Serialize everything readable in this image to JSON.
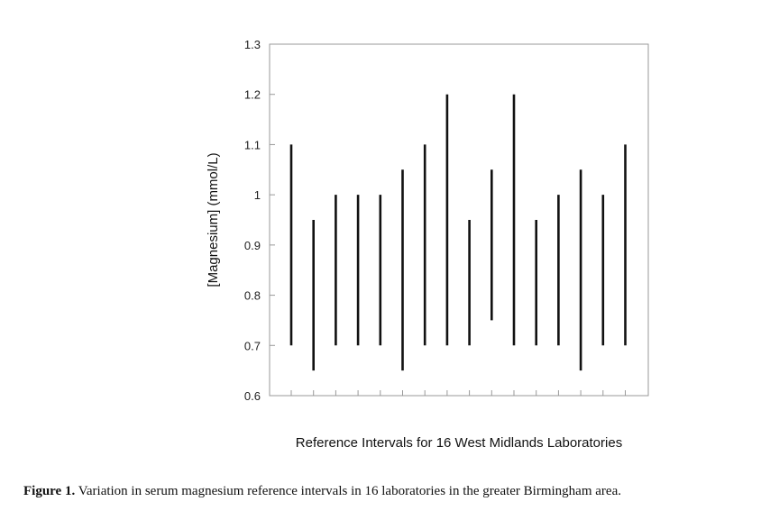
{
  "chart_data": {
    "type": "range-bar",
    "xlabel": "Reference Intervals for 16 West Midlands Laboratories",
    "ylabel": "[Magnesium] (mmol/L)",
    "ylim": [
      0.6,
      1.3
    ],
    "yticks": [
      "0.6",
      "0.7",
      "0.8",
      "0.9",
      "1",
      "1.1",
      "1.2",
      "1.3"
    ],
    "grid": false,
    "intervals": [
      {
        "low": 0.7,
        "high": 1.1
      },
      {
        "low": 0.65,
        "high": 0.95
      },
      {
        "low": 0.7,
        "high": 1.0
      },
      {
        "low": 0.7,
        "high": 1.0
      },
      {
        "low": 0.7,
        "high": 1.0
      },
      {
        "low": 0.65,
        "high": 1.05
      },
      {
        "low": 0.7,
        "high": 1.1
      },
      {
        "low": 0.7,
        "high": 1.2
      },
      {
        "low": 0.7,
        "high": 0.95
      },
      {
        "low": 0.75,
        "high": 1.05
      },
      {
        "low": 0.7,
        "high": 1.2
      },
      {
        "low": 0.7,
        "high": 0.95
      },
      {
        "low": 0.7,
        "high": 1.0
      },
      {
        "low": 0.65,
        "high": 1.05
      },
      {
        "low": 0.7,
        "high": 1.0
      },
      {
        "low": 0.7,
        "high": 1.1
      }
    ]
  },
  "caption": {
    "label": "Figure 1.",
    "text": " Variation in serum magnesium reference intervals in 16 laboratories in the greater Birmingham area."
  }
}
